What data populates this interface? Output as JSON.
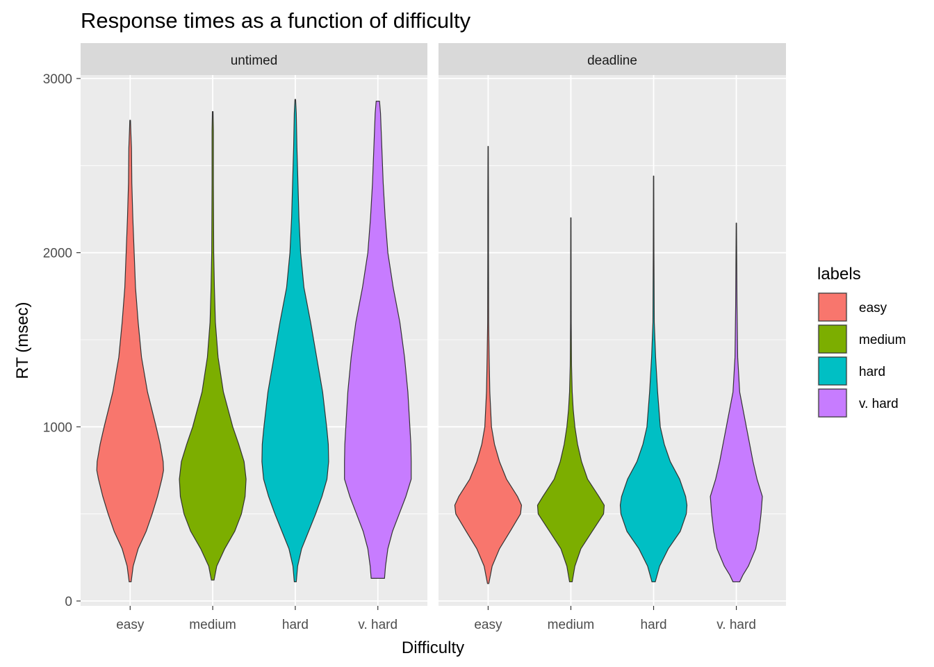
{
  "chart_data": {
    "type": "violin",
    "title": "Response times as a function of difficulty",
    "xlabel": "Difficulty",
    "ylabel": "RT (msec)",
    "ylim": [
      0,
      3000
    ],
    "y_ticks": [
      0,
      1000,
      2000,
      3000
    ],
    "categories": [
      "easy",
      "medium",
      "hard",
      "v. hard"
    ],
    "panels": [
      "untimed",
      "deadline"
    ],
    "grid": true,
    "legend": {
      "title": "labels",
      "position": "right",
      "entries": [
        "easy",
        "medium",
        "hard",
        "v. hard"
      ]
    },
    "colors": {
      "easy": "#F8766D",
      "medium": "#7CAE00",
      "hard": "#00BFC4",
      "v. hard": "#C77CFF"
    },
    "series": [
      {
        "panel": "untimed",
        "category": "easy",
        "profile": [
          [
            110,
            0.03
          ],
          [
            200,
            0.09
          ],
          [
            300,
            0.24
          ],
          [
            400,
            0.48
          ],
          [
            500,
            0.66
          ],
          [
            600,
            0.82
          ],
          [
            700,
            0.95
          ],
          [
            750,
            1.0
          ],
          [
            800,
            0.99
          ],
          [
            900,
            0.9
          ],
          [
            1000,
            0.78
          ],
          [
            1200,
            0.52
          ],
          [
            1400,
            0.34
          ],
          [
            1600,
            0.24
          ],
          [
            1800,
            0.16
          ],
          [
            2000,
            0.12
          ],
          [
            2200,
            0.08
          ],
          [
            2400,
            0.05
          ],
          [
            2600,
            0.04
          ],
          [
            2700,
            0.02
          ],
          [
            2760,
            0.01
          ]
        ]
      },
      {
        "panel": "untimed",
        "category": "medium",
        "profile": [
          [
            120,
            0.04
          ],
          [
            200,
            0.12
          ],
          [
            300,
            0.36
          ],
          [
            400,
            0.66
          ],
          [
            500,
            0.86
          ],
          [
            600,
            0.97
          ],
          [
            700,
            1.0
          ],
          [
            800,
            0.94
          ],
          [
            900,
            0.78
          ],
          [
            1000,
            0.6
          ],
          [
            1200,
            0.32
          ],
          [
            1400,
            0.16
          ],
          [
            1600,
            0.08
          ],
          [
            1800,
            0.05
          ],
          [
            2000,
            0.03
          ],
          [
            2400,
            0.02
          ],
          [
            2700,
            0.02
          ],
          [
            2810,
            0.01
          ]
        ]
      },
      {
        "panel": "untimed",
        "category": "hard",
        "profile": [
          [
            110,
            0.03
          ],
          [
            200,
            0.07
          ],
          [
            300,
            0.19
          ],
          [
            400,
            0.4
          ],
          [
            500,
            0.61
          ],
          [
            600,
            0.8
          ],
          [
            700,
            0.95
          ],
          [
            800,
            1.0
          ],
          [
            900,
            0.99
          ],
          [
            1000,
            0.94
          ],
          [
            1200,
            0.82
          ],
          [
            1400,
            0.64
          ],
          [
            1600,
            0.46
          ],
          [
            1800,
            0.26
          ],
          [
            2000,
            0.16
          ],
          [
            2200,
            0.11
          ],
          [
            2400,
            0.08
          ],
          [
            2600,
            0.05
          ],
          [
            2800,
            0.03
          ],
          [
            2880,
            0.01
          ]
        ]
      },
      {
        "panel": "untimed",
        "category": "v. hard",
        "profile": [
          [
            130,
            0.2
          ],
          [
            200,
            0.23
          ],
          [
            300,
            0.3
          ],
          [
            400,
            0.44
          ],
          [
            500,
            0.64
          ],
          [
            600,
            0.84
          ],
          [
            700,
            1.0
          ],
          [
            800,
            1.0
          ],
          [
            900,
            0.99
          ],
          [
            1000,
            0.96
          ],
          [
            1200,
            0.9
          ],
          [
            1400,
            0.8
          ],
          [
            1600,
            0.66
          ],
          [
            1800,
            0.46
          ],
          [
            2000,
            0.3
          ],
          [
            2200,
            0.22
          ],
          [
            2400,
            0.16
          ],
          [
            2600,
            0.12
          ],
          [
            2800,
            0.08
          ],
          [
            2870,
            0.05
          ]
        ]
      },
      {
        "panel": "deadline",
        "category": "easy",
        "profile": [
          [
            100,
            0.02
          ],
          [
            200,
            0.12
          ],
          [
            300,
            0.34
          ],
          [
            400,
            0.66
          ],
          [
            500,
            0.97
          ],
          [
            550,
            1.0
          ],
          [
            600,
            0.88
          ],
          [
            700,
            0.55
          ],
          [
            800,
            0.34
          ],
          [
            900,
            0.19
          ],
          [
            1000,
            0.1
          ],
          [
            1200,
            0.05
          ],
          [
            1400,
            0.03
          ],
          [
            1600,
            0.015
          ],
          [
            2000,
            0.01
          ],
          [
            2300,
            0.01
          ],
          [
            2610,
            0.005
          ]
        ]
      },
      {
        "panel": "deadline",
        "category": "medium",
        "profile": [
          [
            110,
            0.04
          ],
          [
            200,
            0.12
          ],
          [
            300,
            0.3
          ],
          [
            400,
            0.64
          ],
          [
            500,
            0.98
          ],
          [
            550,
            1.0
          ],
          [
            600,
            0.84
          ],
          [
            700,
            0.5
          ],
          [
            800,
            0.32
          ],
          [
            900,
            0.2
          ],
          [
            1000,
            0.12
          ],
          [
            1100,
            0.07
          ],
          [
            1200,
            0.04
          ],
          [
            1350,
            0.02
          ],
          [
            1600,
            0.01
          ],
          [
            2200,
            0.005
          ]
        ]
      },
      {
        "panel": "deadline",
        "category": "hard",
        "profile": [
          [
            110,
            0.05
          ],
          [
            200,
            0.18
          ],
          [
            300,
            0.44
          ],
          [
            400,
            0.8
          ],
          [
            500,
            0.98
          ],
          [
            550,
            1.0
          ],
          [
            600,
            0.96
          ],
          [
            700,
            0.78
          ],
          [
            800,
            0.5
          ],
          [
            900,
            0.32
          ],
          [
            1000,
            0.2
          ],
          [
            1200,
            0.12
          ],
          [
            1400,
            0.06
          ],
          [
            1600,
            0.02
          ],
          [
            2000,
            0.01
          ],
          [
            2440,
            0.005
          ]
        ]
      },
      {
        "panel": "deadline",
        "category": "v. hard",
        "profile": [
          [
            110,
            0.1
          ],
          [
            150,
            0.2
          ],
          [
            200,
            0.36
          ],
          [
            300,
            0.58
          ],
          [
            400,
            0.68
          ],
          [
            500,
            0.74
          ],
          [
            600,
            0.78
          ],
          [
            700,
            0.62
          ],
          [
            800,
            0.5
          ],
          [
            900,
            0.4
          ],
          [
            1000,
            0.3
          ],
          [
            1100,
            0.2
          ],
          [
            1200,
            0.1
          ],
          [
            1400,
            0.04
          ],
          [
            1700,
            0.02
          ],
          [
            2170,
            0.005
          ]
        ]
      }
    ]
  }
}
